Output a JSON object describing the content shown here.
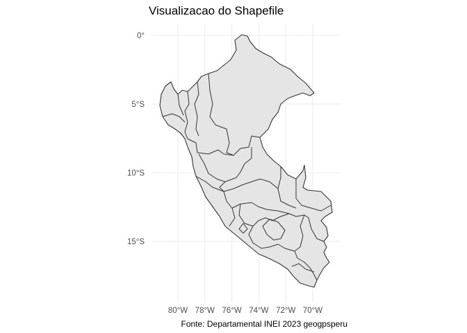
{
  "plot": {
    "title": "Visualizacao do Shapefile",
    "caption": "Fonte: Departamental INEI 2023 geogpsperu"
  },
  "axes": {
    "x_ticks": [
      {
        "value": -80,
        "label": "80°W"
      },
      {
        "value": -78,
        "label": "78°W"
      },
      {
        "value": -76,
        "label": "76°W"
      },
      {
        "value": -74,
        "label": "74°W"
      },
      {
        "value": -72,
        "label": "72°W"
      },
      {
        "value": -70,
        "label": "70°W"
      }
    ],
    "y_ticks": [
      {
        "value": 0,
        "label": "0°"
      },
      {
        "value": -5,
        "label": "5°S"
      },
      {
        "value": -10,
        "label": "10°S"
      },
      {
        "value": -15,
        "label": "15°S"
      }
    ],
    "grid": true,
    "background": "#ffffff",
    "grid_color": "#ebebeb"
  },
  "map": {
    "region": "Peru",
    "fill_color": "#e5e5e5",
    "border_color": "#333333"
  }
}
